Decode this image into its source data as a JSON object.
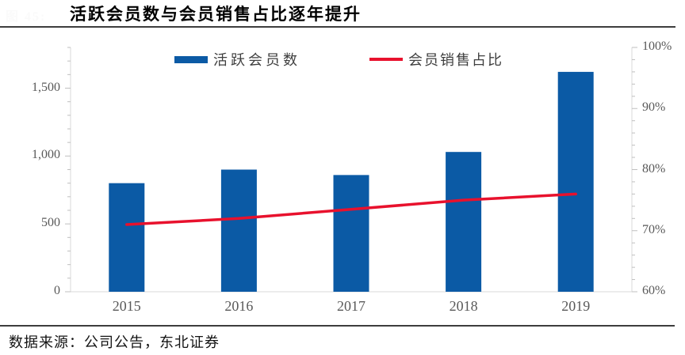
{
  "figure_label": "图 45:",
  "header": {
    "title": "活跃会员数与会员销售占比逐年提升"
  },
  "legend": {
    "items": [
      {
        "label": "活跃会员数",
        "marker": "bar-swatch",
        "color": "#0B5AA5"
      },
      {
        "label": "会员销售占比",
        "marker": "line-swatch",
        "color": "#E8112D"
      }
    ]
  },
  "chart_data": {
    "type": "bar",
    "subtype": "combo-bar-line",
    "title": "活跃会员数与会员销售占比逐年提升",
    "categories": [
      "2015",
      "2016",
      "2017",
      "2018",
      "2019"
    ],
    "series": [
      {
        "name": "活跃会员数",
        "type": "bar",
        "axis": "left",
        "color": "#0B5AA5",
        "values": [
          800,
          900,
          860,
          1030,
          1620
        ]
      },
      {
        "name": "会员销售占比",
        "type": "line",
        "axis": "right",
        "color": "#E8112D",
        "unit": "%",
        "values": [
          71,
          72,
          73.5,
          75,
          76
        ]
      }
    ],
    "left_axis": {
      "min": 0,
      "max": 1800,
      "minor_step": 100,
      "tick_values": [
        0,
        500,
        1000,
        1500
      ],
      "tick_labels": [
        "0",
        "500",
        "1,000",
        "1,500"
      ]
    },
    "right_axis": {
      "min": 60,
      "max": 100,
      "minor_step": 2,
      "tick_values": [
        60,
        70,
        80,
        90,
        100
      ],
      "tick_labels": [
        "60%",
        "70%",
        "80%",
        "90%",
        "100%"
      ]
    },
    "legend_position": "top-inside",
    "grid": false
  },
  "source": {
    "text": "数据来源：公司公告，东北证券"
  },
  "colors": {
    "bar": "#0B5AA5",
    "line": "#E8112D",
    "axis_line": "#D9D9D9",
    "tick_mark": "#BFBFBF",
    "tick_label": "#595959",
    "rule": "#3D3D3D"
  }
}
